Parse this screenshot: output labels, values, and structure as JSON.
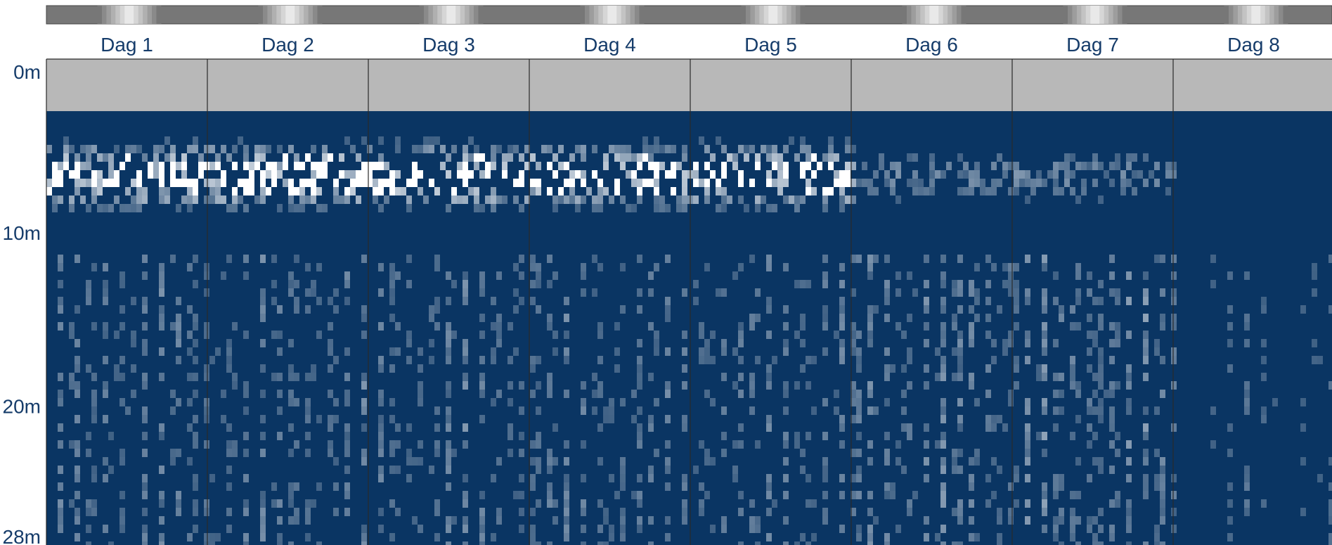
{
  "chart_data": {
    "type": "heatmap",
    "title": "",
    "xlabel": "",
    "ylabel": "",
    "day_labels": [
      "Dag 1",
      "Dag 2",
      "Dag 3",
      "Dag 4",
      "Dag 5",
      "Dag 6",
      "Dag 7",
      "Dag 8"
    ],
    "y_ticks": [
      0,
      10,
      20,
      28
    ],
    "y_tick_labels": [
      "0m",
      "10m",
      "20m",
      "28m"
    ],
    "y_range": [
      0,
      28
    ],
    "surface_band_depth_m": [
      0,
      3
    ],
    "colors": {
      "background": "#0a3563",
      "high": "#ffffff",
      "surface_band": "#b8b8b8",
      "day_strip_dark": "#777777",
      "day_strip_light": "#f2f2f2",
      "divider": "#2a2a2a",
      "label": "#163c6a"
    },
    "intensity_scale": [
      0,
      1
    ]
  }
}
